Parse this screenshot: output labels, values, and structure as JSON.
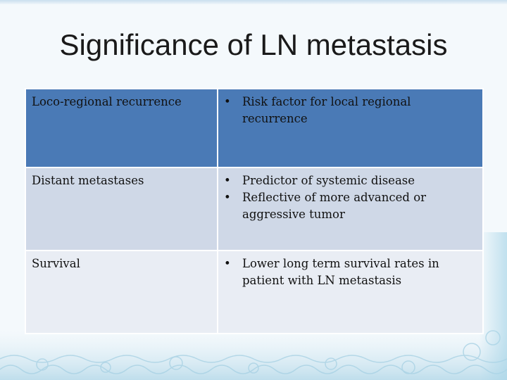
{
  "slide": {
    "title": "Significance of LN metastasis"
  },
  "table": {
    "rows": [
      {
        "label": "Loco-regional recurrence",
        "points": [
          "Risk factor for local regional recurrence"
        ]
      },
      {
        "label": "Distant metastases",
        "points": [
          "Predictor of systemic disease",
          "Reflective of more advanced or aggressive tumor"
        ]
      },
      {
        "label": "Survival",
        "points": [
          "Lower long term survival rates in patient with LN metastasis"
        ]
      }
    ]
  },
  "colors": {
    "header_row": "#4a7ab6",
    "row_2": "#cfd8e7",
    "row_3": "#e9edf4",
    "background": "#f4f9fc"
  }
}
